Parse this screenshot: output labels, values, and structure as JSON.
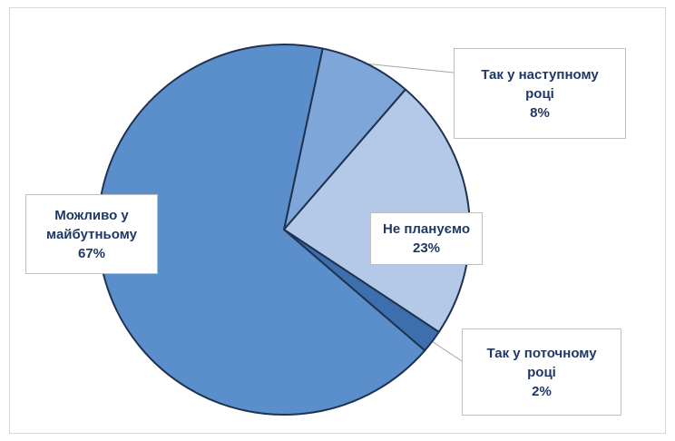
{
  "chart_data": {
    "type": "pie",
    "categories": [
      "Так у наступному році",
      "Не плануємо",
      "Так у поточному році",
      "Можливо у майбутньому"
    ],
    "values": [
      8,
      23,
      2,
      67
    ],
    "data_labels": [
      {
        "category": "Так у наступному році",
        "line1": "Так у наступному",
        "line2": "році",
        "pct": "8%"
      },
      {
        "category": "Не плануємо",
        "line1": "Не плануємо",
        "line2": "",
        "pct": "23%"
      },
      {
        "category": "Так у поточному році",
        "line1": "Так у поточному",
        "line2": "році",
        "pct": "2%"
      },
      {
        "category": "Можливо у майбутньому",
        "line1": "Можливо у",
        "line2": "майбутньому",
        "pct": "67%"
      }
    ],
    "colors": [
      "#7ea6d8",
      "#b4c9e8",
      "#3d6fae",
      "#5b8fcb"
    ],
    "stroke_color": "#1f3350",
    "start_angle_deg": 12,
    "direction": "clockwise",
    "legend": "none"
  }
}
